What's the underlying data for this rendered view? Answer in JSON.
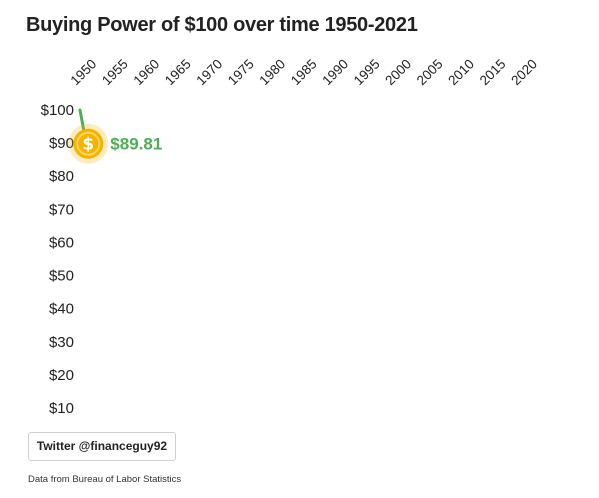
{
  "chart_data": {
    "type": "line",
    "title": "Buying Power of $100 over time 1950-2021",
    "xlabel": "",
    "ylabel": "",
    "x_ticks": [
      "1950",
      "1955",
      "1960",
      "1965",
      "1970",
      "1975",
      "1980",
      "1985",
      "1990",
      "1995",
      "2000",
      "2005",
      "2010",
      "2015",
      "2020"
    ],
    "y_ticks": [
      "$100",
      "$90",
      "$80",
      "$70",
      "$60",
      "$50",
      "$40",
      "$30",
      "$20",
      "$10"
    ],
    "xlim": [
      1950,
      2021
    ],
    "ylim": [
      10,
      100
    ],
    "series": [
      {
        "x": [
          1950,
          1950.5,
          1951
        ],
        "y": [
          100,
          95,
          89.81
        ],
        "color": "#4caf50"
      }
    ],
    "annotations": [
      {
        "text": "$89.81",
        "x": 1951,
        "y": 89.81
      }
    ],
    "marker_icon": "dollar-coin-icon",
    "coin_color": "#f5b301",
    "grid": false,
    "legend": "none"
  },
  "footer": {
    "twitter_label": "Twitter @financeguy92",
    "source_note": "Data from Bureau of Labor Statistics"
  }
}
